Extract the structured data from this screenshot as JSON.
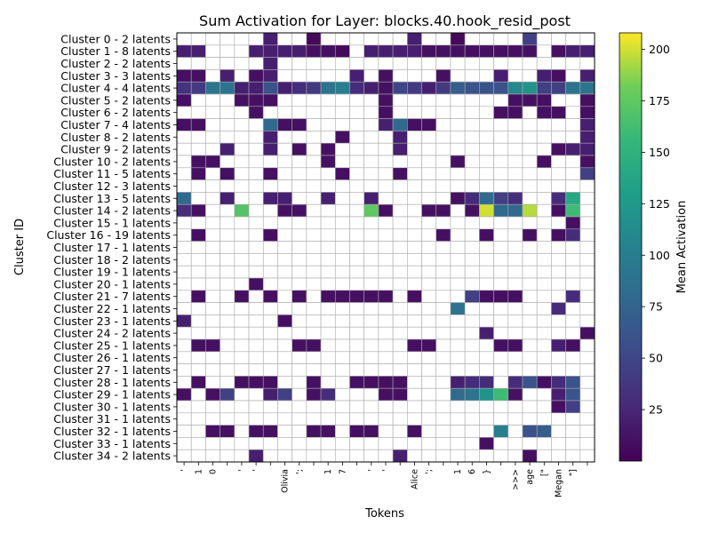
{
  "chart_data": {
    "type": "heatmap",
    "title": "Sum Activation for Layer: blocks.40.hook_resid_post",
    "xlabel": "Tokens",
    "ylabel": "Cluster ID",
    "colorbar_label": "Mean Activation",
    "colormap": "viridis",
    "value_range": [
      0,
      208
    ],
    "colorbar_ticks": [
      25,
      50,
      75,
      100,
      125,
      150,
      175,
      200
    ],
    "x_tick_labels": [
      "'",
      "1",
      "0",
      "",
      "'",
      "'",
      "",
      "Olivia",
      "';",
      "",
      "1",
      "7",
      "",
      "'",
      "'",
      "",
      "Alice",
      "';",
      "",
      "1",
      "6",
      "}",
      "",
      ">>>",
      "age",
      "[\"",
      "Megan",
      "\"]",
      ""
    ],
    "y_tick_labels": [
      "Cluster 0 - 2 latents",
      "Cluster 1 - 8 latents",
      "Cluster 2 - 2 latents",
      "Cluster 3 - 3 latents",
      "Cluster 4 - 4 latents",
      "Cluster 5 - 2 latents",
      "Cluster 6 - 2 latents",
      "Cluster 7 - 4 latents",
      "Cluster 8 - 2 latents",
      "Cluster 9 - 2 latents",
      "Cluster 10 - 2 latents",
      "Cluster 11 - 5 latents",
      "Cluster 12 - 3 latents",
      "Cluster 13 - 5 latents",
      "Cluster 14 - 2 latents",
      "Cluster 15 - 1 latents",
      "Cluster 16 - 19 latents",
      "Cluster 17 - 1 latents",
      "Cluster 18 - 2 latents",
      "Cluster 19 - 1 latents",
      "Cluster 20 - 1 latents",
      "Cluster 21 - 7 latents",
      "Cluster 22 - 1 latents",
      "Cluster 23 - 1 latents",
      "Cluster 24 - 2 latents",
      "Cluster 25 - 1 latents",
      "Cluster 26 - 1 latents",
      "Cluster 27 - 1 latents",
      "Cluster 28 - 1 latents",
      "Cluster 29 - 1 latents",
      "Cluster 30 - 1 latents",
      "Cluster 31 - 1 latents",
      "Cluster 32 - 1 latents",
      "Cluster 33 - 1 latents",
      "Cluster 34 - 2 latents"
    ],
    "grid": true,
    "legend": "colorbar-right",
    "rows": [
      [
        0,
        0,
        0,
        0,
        0,
        0,
        20,
        0,
        0,
        5,
        0,
        0,
        0,
        0,
        0,
        0,
        20,
        0,
        0,
        5,
        0,
        0,
        0,
        0,
        45,
        0,
        0,
        0,
        0
      ],
      [
        20,
        20,
        0,
        0,
        0,
        20,
        20,
        20,
        20,
        10,
        10,
        5,
        0,
        20,
        20,
        20,
        20,
        10,
        10,
        10,
        10,
        10,
        10,
        10,
        10,
        0,
        10,
        20,
        20
      ],
      [
        0,
        0,
        0,
        0,
        0,
        0,
        20,
        0,
        0,
        0,
        0,
        0,
        0,
        0,
        0,
        0,
        0,
        0,
        0,
        0,
        0,
        0,
        0,
        0,
        0,
        0,
        0,
        0,
        0
      ],
      [
        10,
        10,
        0,
        20,
        0,
        10,
        20,
        0,
        0,
        0,
        0,
        0,
        20,
        0,
        10,
        0,
        0,
        0,
        10,
        0,
        0,
        0,
        20,
        0,
        0,
        20,
        10,
        0,
        20
      ],
      [
        35,
        40,
        90,
        90,
        20,
        20,
        60,
        20,
        30,
        40,
        90,
        100,
        30,
        20,
        10,
        50,
        40,
        20,
        40,
        70,
        60,
        60,
        60,
        110,
        120,
        45,
        45,
        90,
        90
      ],
      [
        10,
        0,
        0,
        0,
        10,
        10,
        10,
        0,
        0,
        0,
        0,
        0,
        0,
        0,
        10,
        0,
        0,
        0,
        0,
        0,
        0,
        0,
        0,
        10,
        10,
        10,
        0,
        0,
        10
      ],
      [
        0,
        0,
        0,
        0,
        0,
        10,
        0,
        0,
        0,
        0,
        0,
        0,
        0,
        0,
        10,
        0,
        0,
        0,
        0,
        0,
        0,
        0,
        10,
        10,
        0,
        10,
        10,
        0,
        10
      ],
      [
        10,
        10,
        0,
        0,
        0,
        0,
        80,
        10,
        10,
        0,
        0,
        0,
        0,
        0,
        20,
        80,
        10,
        10,
        0,
        0,
        0,
        0,
        0,
        0,
        0,
        0,
        0,
        0,
        20
      ],
      [
        0,
        0,
        0,
        0,
        0,
        0,
        20,
        0,
        0,
        0,
        0,
        10,
        0,
        0,
        0,
        20,
        0,
        0,
        0,
        0,
        0,
        0,
        0,
        0,
        0,
        0,
        0,
        0,
        20
      ],
      [
        0,
        0,
        0,
        20,
        0,
        0,
        20,
        0,
        10,
        0,
        10,
        0,
        0,
        0,
        0,
        20,
        0,
        0,
        0,
        0,
        0,
        0,
        0,
        0,
        0,
        0,
        10,
        20,
        20
      ],
      [
        0,
        10,
        10,
        0,
        0,
        0,
        0,
        0,
        0,
        0,
        10,
        0,
        0,
        0,
        0,
        0,
        0,
        0,
        0,
        10,
        0,
        0,
        0,
        0,
        0,
        10,
        0,
        0,
        10
      ],
      [
        0,
        10,
        0,
        10,
        0,
        0,
        10,
        0,
        0,
        0,
        0,
        10,
        0,
        0,
        0,
        10,
        0,
        0,
        0,
        0,
        0,
        0,
        0,
        0,
        0,
        0,
        0,
        0,
        45
      ],
      [
        0,
        0,
        0,
        0,
        0,
        0,
        0,
        0,
        0,
        0,
        0,
        0,
        0,
        0,
        0,
        0,
        0,
        0,
        0,
        0,
        0,
        0,
        0,
        0,
        0,
        0,
        0,
        0,
        0
      ],
      [
        80,
        0,
        0,
        20,
        0,
        0,
        20,
        20,
        0,
        0,
        20,
        0,
        0,
        20,
        0,
        0,
        0,
        0,
        0,
        10,
        30,
        80,
        45,
        30,
        0,
        0,
        30,
        140,
        0
      ],
      [
        30,
        10,
        0,
        0,
        170,
        0,
        0,
        10,
        10,
        0,
        0,
        0,
        0,
        175,
        10,
        0,
        0,
        10,
        10,
        0,
        10,
        200,
        80,
        80,
        195,
        0,
        10,
        160,
        0
      ],
      [
        0,
        0,
        0,
        0,
        0,
        0,
        0,
        0,
        0,
        0,
        0,
        0,
        0,
        0,
        0,
        0,
        0,
        0,
        0,
        0,
        0,
        0,
        0,
        0,
        0,
        0,
        0,
        10,
        0
      ],
      [
        0,
        10,
        0,
        0,
        0,
        0,
        10,
        0,
        0,
        0,
        0,
        0,
        0,
        0,
        0,
        0,
        0,
        0,
        10,
        0,
        0,
        10,
        0,
        0,
        10,
        0,
        10,
        30,
        0
      ],
      [
        0,
        0,
        0,
        0,
        0,
        0,
        0,
        0,
        0,
        0,
        0,
        0,
        0,
        0,
        0,
        0,
        0,
        0,
        0,
        0,
        0,
        0,
        0,
        0,
        0,
        0,
        0,
        0,
        0
      ],
      [
        0,
        0,
        0,
        0,
        0,
        0,
        0,
        0,
        0,
        0,
        0,
        0,
        0,
        0,
        0,
        0,
        0,
        0,
        0,
        0,
        0,
        0,
        0,
        0,
        0,
        0,
        0,
        0,
        0
      ],
      [
        0,
        0,
        0,
        0,
        0,
        0,
        0,
        0,
        0,
        0,
        0,
        0,
        0,
        0,
        0,
        0,
        0,
        0,
        0,
        0,
        0,
        0,
        0,
        0,
        0,
        0,
        0,
        0,
        0
      ],
      [
        0,
        0,
        0,
        0,
        0,
        10,
        0,
        0,
        0,
        0,
        0,
        0,
        0,
        0,
        0,
        0,
        0,
        0,
        0,
        0,
        0,
        0,
        0,
        0,
        0,
        0,
        0,
        0,
        0
      ],
      [
        0,
        10,
        0,
        0,
        10,
        0,
        10,
        0,
        10,
        0,
        10,
        10,
        10,
        10,
        10,
        0,
        10,
        0,
        0,
        0,
        45,
        10,
        10,
        10,
        0,
        0,
        0,
        30,
        0
      ],
      [
        0,
        0,
        0,
        0,
        0,
        0,
        0,
        0,
        0,
        0,
        0,
        0,
        0,
        0,
        0,
        0,
        0,
        0,
        0,
        90,
        0,
        0,
        0,
        0,
        0,
        0,
        30,
        0,
        0
      ],
      [
        20,
        0,
        0,
        0,
        0,
        0,
        0,
        10,
        0,
        0,
        0,
        0,
        0,
        0,
        0,
        0,
        0,
        0,
        0,
        0,
        0,
        0,
        0,
        0,
        0,
        0,
        0,
        0,
        0
      ],
      [
        0,
        0,
        0,
        0,
        0,
        0,
        0,
        0,
        0,
        0,
        0,
        0,
        0,
        0,
        0,
        0,
        0,
        0,
        0,
        0,
        0,
        20,
        0,
        0,
        0,
        0,
        0,
        0,
        10
      ],
      [
        0,
        10,
        10,
        0,
        0,
        0,
        0,
        0,
        10,
        10,
        0,
        0,
        0,
        0,
        0,
        0,
        10,
        10,
        0,
        0,
        0,
        0,
        10,
        10,
        0,
        0,
        20,
        10,
        0
      ],
      [
        0,
        0,
        0,
        0,
        0,
        0,
        0,
        0,
        0,
        0,
        0,
        0,
        0,
        0,
        0,
        0,
        0,
        0,
        0,
        0,
        0,
        0,
        0,
        0,
        0,
        0,
        0,
        0,
        0
      ],
      [
        0,
        0,
        0,
        0,
        0,
        0,
        0,
        0,
        0,
        0,
        0,
        0,
        0,
        0,
        0,
        0,
        0,
        0,
        0,
        0,
        0,
        0,
        0,
        0,
        0,
        0,
        0,
        0,
        0
      ],
      [
        0,
        10,
        0,
        0,
        10,
        10,
        10,
        0,
        0,
        10,
        0,
        0,
        10,
        10,
        10,
        10,
        0,
        0,
        0,
        20,
        30,
        30,
        0,
        30,
        60,
        10,
        30,
        60,
        0
      ],
      [
        10,
        0,
        10,
        45,
        0,
        0,
        20,
        45,
        0,
        10,
        30,
        0,
        0,
        0,
        10,
        10,
        0,
        0,
        0,
        80,
        90,
        120,
        160,
        10,
        0,
        0,
        20,
        60,
        0
      ],
      [
        0,
        0,
        0,
        0,
        0,
        0,
        0,
        0,
        0,
        0,
        0,
        0,
        0,
        0,
        0,
        0,
        0,
        0,
        0,
        0,
        0,
        0,
        0,
        0,
        0,
        0,
        10,
        45,
        0
      ],
      [
        0,
        0,
        0,
        0,
        0,
        0,
        0,
        0,
        0,
        0,
        0,
        0,
        0,
        0,
        0,
        0,
        0,
        0,
        0,
        0,
        0,
        0,
        0,
        0,
        0,
        0,
        0,
        0,
        0
      ],
      [
        0,
        0,
        10,
        10,
        0,
        10,
        10,
        0,
        0,
        10,
        10,
        0,
        10,
        10,
        0,
        0,
        10,
        0,
        0,
        0,
        0,
        0,
        100,
        0,
        60,
        70,
        0,
        0,
        0
      ],
      [
        0,
        0,
        0,
        0,
        0,
        0,
        0,
        0,
        0,
        0,
        0,
        0,
        0,
        0,
        0,
        0,
        0,
        0,
        0,
        0,
        0,
        10,
        0,
        0,
        0,
        0,
        0,
        0,
        0
      ],
      [
        0,
        0,
        0,
        0,
        0,
        20,
        0,
        0,
        0,
        0,
        0,
        0,
        0,
        0,
        0,
        20,
        0,
        0,
        0,
        0,
        0,
        0,
        0,
        0,
        10,
        0,
        0,
        0,
        0
      ]
    ]
  }
}
